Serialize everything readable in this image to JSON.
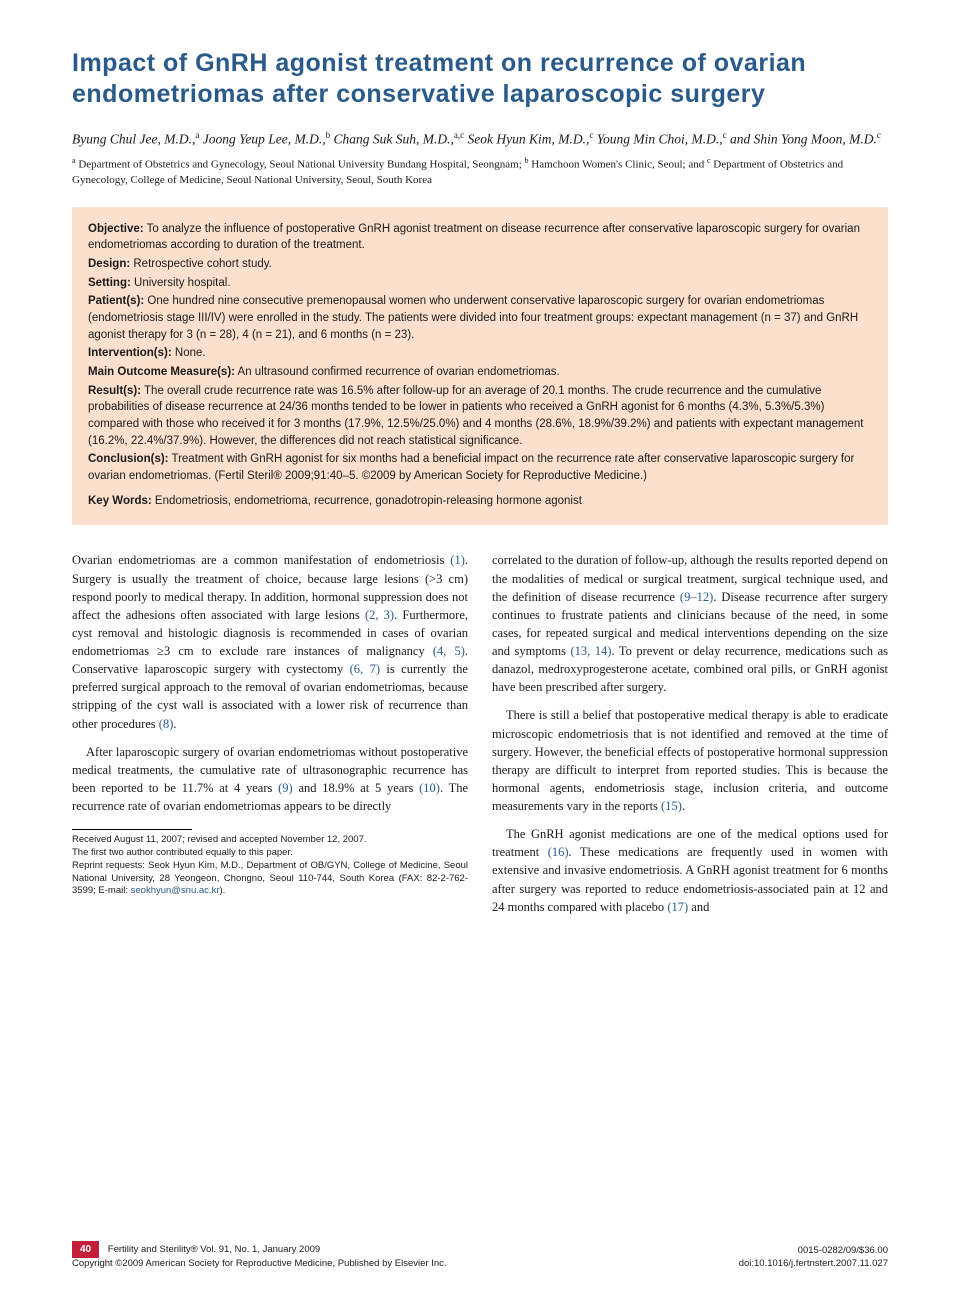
{
  "title": "Impact of GnRH agonist treatment on recurrence of ovarian endometriomas after conservative laparoscopic surgery",
  "authors_html": "Byung Chul Jee, M.D.,<sup>a</sup> Joong Yeup Lee, M.D.,<sup>b</sup> Chang Suk Suh, M.D.,<sup>a,c</sup> Seok Hyun Kim, M.D.,<sup>c</sup> Young Min Choi, M.D.,<sup>c</sup> and Shin Yong Moon, M.D.<sup>c</sup>",
  "affiliations_html": "<sup>a</sup> Department of Obstetrics and Gynecology, Seoul National University Bundang Hospital, Seongnam; <sup>b</sup> Hamchoon Women's Clinic, Seoul; and <sup>c</sup> Department of Obstetrics and Gynecology, College of Medicine, Seoul National University, Seoul, South Korea",
  "abstract": {
    "objective": {
      "label": "Objective:",
      "text": " To analyze the influence of postoperative GnRH agonist treatment on disease recurrence after conservative laparoscopic surgery for ovarian endometriomas according to duration of the treatment."
    },
    "design": {
      "label": "Design:",
      "text": " Retrospective cohort study."
    },
    "setting": {
      "label": "Setting:",
      "text": " University hospital."
    },
    "patients": {
      "label": "Patient(s):",
      "text": " One hundred nine consecutive premenopausal women who underwent conservative laparoscopic surgery for ovarian endometriomas (endometriosis stage III/IV) were enrolled in the study. The patients were divided into four treatment groups: expectant management (n = 37) and GnRH agonist therapy for 3 (n = 28), 4 (n = 21), and 6 months (n = 23)."
    },
    "interventions": {
      "label": "Intervention(s):",
      "text": " None."
    },
    "outcome": {
      "label": "Main Outcome Measure(s):",
      "text": " An ultrasound confirmed recurrence of ovarian endometriomas."
    },
    "results": {
      "label": "Result(s):",
      "text": " The overall crude recurrence rate was 16.5% after follow-up for an average of 20.1 months. The crude recurrence and the cumulative probabilities of disease recurrence at 24/36 months tended to be lower in patients who received a GnRH agonist for 6 months (4.3%, 5.3%/5.3%) compared with those who received it for 3 months (17.9%, 12.5%/25.0%) and 4 months (28.6%, 18.9%/39.2%) and patients with expectant management (16.2%, 22.4%/37.9%). However, the differences did not reach statistical significance."
    },
    "conclusions": {
      "label": "Conclusion(s):",
      "text": " Treatment with GnRH agonist for six months had a beneficial impact on the recurrence rate after conservative laparoscopic surgery for ovarian endometriomas. (Fertil Steril® 2009;91:40–5. ©2009 by American Society for Reproductive Medicine.)"
    },
    "keywords": {
      "label": "Key Words:",
      "text": " Endometriosis, endometrioma, recurrence, gonadotropin-releasing hormone agonist"
    }
  },
  "body": {
    "left": {
      "p1_html": "Ovarian endometriomas are a common manifestation of endometriosis <span class=\"ref-link\">(1)</span>. Surgery is usually the treatment of choice, because large lesions (>3 cm) respond poorly to medical therapy. In addition, hormonal suppression does not affect the adhesions often associated with large lesions <span class=\"ref-link\">(2, 3)</span>. Furthermore, cyst removal and histologic diagnosis is recommended in cases of ovarian endometriomas ≥3 cm to exclude rare instances of malignancy <span class=\"ref-link\">(4, 5)</span>. Conservative laparoscopic surgery with cystectomy <span class=\"ref-link\">(6, 7)</span> is currently the preferred surgical approach to the removal of ovarian endometriomas, because stripping of the cyst wall is associated with a lower risk of recurrence than other procedures <span class=\"ref-link\">(8)</span>.",
      "p2_html": "After laparoscopic surgery of ovarian endometriomas without postoperative medical treatments, the cumulative rate of ultrasonographic recurrence has been reported to be 11.7% at 4 years <span class=\"ref-link\">(9)</span> and 18.9% at 5 years <span class=\"ref-link\">(10)</span>. The recurrence rate of ovarian endometriomas appears to be directly"
    },
    "right": {
      "p1_html": "correlated to the duration of follow-up, although the results reported depend on the modalities of medical or surgical treatment, surgical technique used, and the definition of disease recurrence <span class=\"ref-link\">(9–12)</span>. Disease recurrence after surgery continues to frustrate patients and clinicians because of the need, in some cases, for repeated surgical and medical interventions depending on the size and symptoms <span class=\"ref-link\">(13, 14)</span>. To prevent or delay recurrence, medications such as danazol, medroxyprogesterone acetate, combined oral pills, or GnRH agonist have been prescribed after surgery.",
      "p2_html": "There is still a belief that postoperative medical therapy is able to eradicate microscopic endometriosis that is not identified and removed at the time of surgery. However, the beneficial effects of postoperative hormonal suppression therapy are difficult to interpret from reported studies. This is because the hormonal agents, endometriosis stage, inclusion criteria, and outcome measurements vary in the reports <span class=\"ref-link\">(15)</span>.",
      "p3_html": "The GnRH agonist medications are one of the medical options used for treatment <span class=\"ref-link\">(16)</span>. These medications are frequently used in women with extensive and invasive endometriosis. A GnRH agonist treatment for 6 months after surgery was reported to reduce endometriosis-associated pain at 12 and 24 months compared with placebo <span class=\"ref-link\">(17)</span> and"
    }
  },
  "footnotes": {
    "received": "Received August 11, 2007; revised and accepted November 12, 2007.",
    "contrib": "The first two author contributed equally to this paper.",
    "reprint_html": "Reprint requests: Seok Hyun Kim, M.D., Department of OB/GYN, College of Medicine, Seoul National University, 28 Yeongeon, Chongno, Seoul 110-744, South Korea (FAX: 82-2-762-3599; E-mail: <span class=\"email\">seokhyun@snu.ac.kr</span>)."
  },
  "footer": {
    "page": "40",
    "journal": "Fertility and Sterility® Vol. 91, No. 1, January 2009",
    "copyright": "Copyright ©2009 American Society for Reproductive Medicine, Published by Elsevier Inc.",
    "issn": "0015-0282/09/$36.00",
    "doi": "doi:10.1016/j.fertnstert.2007.11.027"
  },
  "colors": {
    "title": "#2a5a8a",
    "abstract_bg": "#fbe0cd",
    "ref_link": "#2a5a8a",
    "page_badge_bg": "#c41e3a",
    "page_badge_fg": "#ffffff"
  }
}
